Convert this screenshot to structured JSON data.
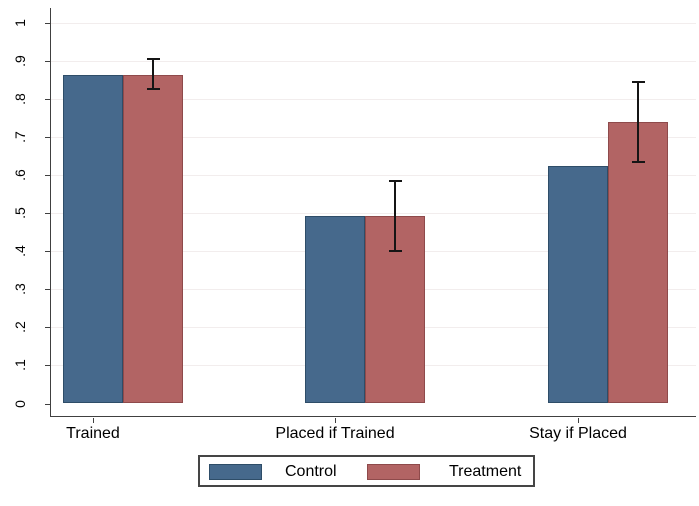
{
  "chart_data": {
    "type": "bar",
    "title": "",
    "xlabel": "",
    "ylabel": "",
    "categories": [
      "Trained",
      "Placed if Trained",
      "Stay if Placed"
    ],
    "series": [
      {
        "name": "Control",
        "color": "#46698c",
        "border_color": "#2e4d68",
        "values": [
          0.863,
          0.491,
          0.623
        ]
      },
      {
        "name": "Treatment",
        "color": "#b26464",
        "border_color": "#8e4a4b",
        "values": [
          0.863,
          0.491,
          0.739
        ],
        "ci": [
          [
            0.825,
            0.905
          ],
          [
            0.4,
            0.585
          ],
          [
            0.635,
            0.845
          ]
        ]
      }
    ],
    "ylim": [
      0,
      1
    ],
    "yticks": [
      0,
      0.1,
      0.2,
      0.3,
      0.4,
      0.5,
      0.6,
      0.7,
      0.8,
      0.9,
      1
    ],
    "ytick_labels": [
      "0",
      ".1",
      ".2",
      ".3",
      ".4",
      ".5",
      ".6",
      ".7",
      ".8",
      ".9",
      "1"
    ],
    "grid": true,
    "gridline_color": "#f2eded",
    "axis_color": "#404040",
    "error_bar_color": "#151515",
    "text_color": "#000000",
    "legend_position": "bottom"
  }
}
